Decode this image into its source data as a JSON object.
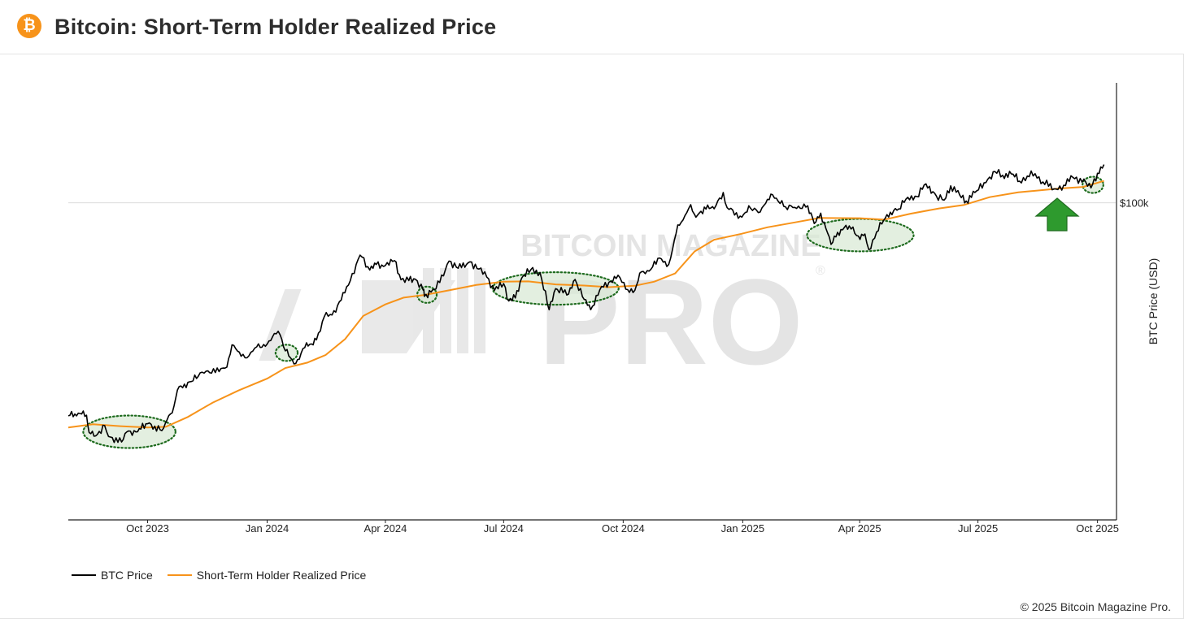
{
  "header": {
    "logo_glyph": "₿",
    "logo_icon": "bitcoin-icon",
    "title": "Bitcoin: Short-Term Holder Realized Price"
  },
  "watermark": {
    "line1": "BITCOIN MAGAZINE",
    "line2": "PRO",
    "mark": "®"
  },
  "colors": {
    "btc_price": "#000000",
    "sth_realized": "#f7931a",
    "highlight_fill": "#d9ead6",
    "highlight_stroke": "#1e6b1e",
    "arrow": "#2e9a2e"
  },
  "footer": {
    "credit": "© 2025 Bitcoin Magazine Pro."
  },
  "chart_data": {
    "type": "line",
    "title": "Bitcoin: Short-Term Holder Realized Price",
    "xlabel": "",
    "ylabel": "BTC Price (USD)",
    "y_scale": "log",
    "ylim": [
      16000,
      200000
    ],
    "xlim": [
      "2023-08-01",
      "2025-10-15"
    ],
    "x_ticks": [
      {
        "date": "2023-10-01",
        "label": "Oct 2023"
      },
      {
        "date": "2024-01-01",
        "label": "Jan 2024"
      },
      {
        "date": "2024-04-01",
        "label": "Apr 2024"
      },
      {
        "date": "2024-07-01",
        "label": "Jul 2024"
      },
      {
        "date": "2024-10-01",
        "label": "Oct 2024"
      },
      {
        "date": "2025-01-01",
        "label": "Jan 2025"
      },
      {
        "date": "2025-04-01",
        "label": "Apr 2025"
      },
      {
        "date": "2025-07-01",
        "label": "Jul 2025"
      },
      {
        "date": "2025-10-01",
        "label": "Oct 2025"
      }
    ],
    "y_ticks": [
      {
        "value": 100000,
        "label": "$100k"
      }
    ],
    "grid": "horizontal at $100k",
    "legend_position": "bottom-left",
    "series": [
      {
        "name": "BTC Price",
        "color": "#000000",
        "points": [
          [
            "2023-08-01",
            29200
          ],
          [
            "2023-08-06",
            29500
          ],
          [
            "2023-08-10",
            29600
          ],
          [
            "2023-08-15",
            29300
          ],
          [
            "2023-08-17",
            26500
          ],
          [
            "2023-08-22",
            26000
          ],
          [
            "2023-08-29",
            27600
          ],
          [
            "2023-09-01",
            25900
          ],
          [
            "2023-09-11",
            25100
          ],
          [
            "2023-09-15",
            26600
          ],
          [
            "2023-09-22",
            26600
          ],
          [
            "2023-10-01",
            27900
          ],
          [
            "2023-10-12",
            26800
          ],
          [
            "2023-10-16",
            28500
          ],
          [
            "2023-10-20",
            29700
          ],
          [
            "2023-10-24",
            33900
          ],
          [
            "2023-11-01",
            35400
          ],
          [
            "2023-11-09",
            36700
          ],
          [
            "2023-11-15",
            37800
          ],
          [
            "2023-11-25",
            37700
          ],
          [
            "2023-12-01",
            38700
          ],
          [
            "2023-12-05",
            44000
          ],
          [
            "2023-12-12",
            41200
          ],
          [
            "2023-12-18",
            41300
          ],
          [
            "2023-12-24",
            43500
          ],
          [
            "2024-01-01",
            44200
          ],
          [
            "2024-01-08",
            46900
          ],
          [
            "2024-01-11",
            46600
          ],
          [
            "2024-01-15",
            42500
          ],
          [
            "2024-01-23",
            39500
          ],
          [
            "2024-01-30",
            43300
          ],
          [
            "2024-02-08",
            45300
          ],
          [
            "2024-02-14",
            51800
          ],
          [
            "2024-02-20",
            52300
          ],
          [
            "2024-02-27",
            57000
          ],
          [
            "2024-03-05",
            63800
          ],
          [
            "2024-03-11",
            72100
          ],
          [
            "2024-03-14",
            73100
          ],
          [
            "2024-03-20",
            67800
          ],
          [
            "2024-03-25",
            70000
          ],
          [
            "2024-04-01",
            69600
          ],
          [
            "2024-04-08",
            71600
          ],
          [
            "2024-04-13",
            64100
          ],
          [
            "2024-04-19",
            63800
          ],
          [
            "2024-04-24",
            64300
          ],
          [
            "2024-04-30",
            60400
          ],
          [
            "2024-05-01",
            58200
          ],
          [
            "2024-05-10",
            60800
          ],
          [
            "2024-05-20",
            71400
          ],
          [
            "2024-05-27",
            68500
          ],
          [
            "2024-06-05",
            71100
          ],
          [
            "2024-06-12",
            68200
          ],
          [
            "2024-06-18",
            65100
          ],
          [
            "2024-06-24",
            60300
          ],
          [
            "2024-07-01",
            62700
          ],
          [
            "2024-07-05",
            56700
          ],
          [
            "2024-07-10",
            57700
          ],
          [
            "2024-07-15",
            64800
          ],
          [
            "2024-07-22",
            68000
          ],
          [
            "2024-07-29",
            66800
          ],
          [
            "2024-08-05",
            53900
          ],
          [
            "2024-08-10",
            60900
          ],
          [
            "2024-08-20",
            59000
          ],
          [
            "2024-08-25",
            64200
          ],
          [
            "2024-09-01",
            57200
          ],
          [
            "2024-09-06",
            53900
          ],
          [
            "2024-09-13",
            60500
          ],
          [
            "2024-09-20",
            63200
          ],
          [
            "2024-09-27",
            65800
          ],
          [
            "2024-10-03",
            60700
          ],
          [
            "2024-10-10",
            60300
          ],
          [
            "2024-10-15",
            67100
          ],
          [
            "2024-10-21",
            67400
          ],
          [
            "2024-10-29",
            72700
          ],
          [
            "2024-11-05",
            70000
          ],
          [
            "2024-11-08",
            76500
          ],
          [
            "2024-11-12",
            88000
          ],
          [
            "2024-11-16",
            90500
          ],
          [
            "2024-11-22",
            98900
          ],
          [
            "2024-11-26",
            92000
          ],
          [
            "2024-12-05",
            98700
          ],
          [
            "2024-12-10",
            96600
          ],
          [
            "2024-12-17",
            106100
          ],
          [
            "2024-12-20",
            97200
          ],
          [
            "2024-12-30",
            92600
          ],
          [
            "2025-01-07",
            96900
          ],
          [
            "2025-01-13",
            94500
          ],
          [
            "2025-01-20",
            102000
          ],
          [
            "2025-01-24",
            104800
          ],
          [
            "2025-02-03",
            97600
          ],
          [
            "2025-02-10",
            97400
          ],
          [
            "2025-02-20",
            98300
          ],
          [
            "2025-02-25",
            88700
          ],
          [
            "2025-03-02",
            94200
          ],
          [
            "2025-03-10",
            78600
          ],
          [
            "2025-03-15",
            84300
          ],
          [
            "2025-03-24",
            87500
          ],
          [
            "2025-03-31",
            82500
          ],
          [
            "2025-04-05",
            83500
          ],
          [
            "2025-04-08",
            76300
          ],
          [
            "2025-04-14",
            84500
          ],
          [
            "2025-04-22",
            93400
          ],
          [
            "2025-05-01",
            96500
          ],
          [
            "2025-05-08",
            103200
          ],
          [
            "2025-05-15",
            103700
          ],
          [
            "2025-05-22",
            111600
          ],
          [
            "2025-05-30",
            104000
          ],
          [
            "2025-06-05",
            101600
          ],
          [
            "2025-06-10",
            110300
          ],
          [
            "2025-06-17",
            104600
          ],
          [
            "2025-06-22",
            101000
          ],
          [
            "2025-06-30",
            107100
          ],
          [
            "2025-07-10",
            116000
          ],
          [
            "2025-07-14",
            119800
          ],
          [
            "2025-07-20",
            117300
          ],
          [
            "2025-07-28",
            118000
          ],
          [
            "2025-08-02",
            113300
          ],
          [
            "2025-08-08",
            116700
          ],
          [
            "2025-08-14",
            118300
          ],
          [
            "2025-08-20",
            112800
          ],
          [
            "2025-08-30",
            108300
          ],
          [
            "2025-09-05",
            110700
          ],
          [
            "2025-09-12",
            115900
          ],
          [
            "2025-09-22",
            112700
          ],
          [
            "2025-09-26",
            109000
          ],
          [
            "2025-10-01",
            118600
          ],
          [
            "2025-10-06",
            124700
          ]
        ]
      },
      {
        "name": "Short-Term Holder Realized Price",
        "color": "#f7931a",
        "points": [
          [
            "2023-08-01",
            27300
          ],
          [
            "2023-08-20",
            27800
          ],
          [
            "2023-09-10",
            27500
          ],
          [
            "2023-10-01",
            27300
          ],
          [
            "2023-10-15",
            27400
          ],
          [
            "2023-11-01",
            29000
          ],
          [
            "2023-11-20",
            31500
          ],
          [
            "2023-12-10",
            33800
          ],
          [
            "2024-01-01",
            36200
          ],
          [
            "2024-01-15",
            38500
          ],
          [
            "2024-02-01",
            39700
          ],
          [
            "2024-02-15",
            41500
          ],
          [
            "2024-03-01",
            45500
          ],
          [
            "2024-03-15",
            52000
          ],
          [
            "2024-04-01",
            55600
          ],
          [
            "2024-04-15",
            57800
          ],
          [
            "2024-05-01",
            58700
          ],
          [
            "2024-05-20",
            60300
          ],
          [
            "2024-06-10",
            62200
          ],
          [
            "2024-07-01",
            63400
          ],
          [
            "2024-07-20",
            63500
          ],
          [
            "2024-08-10",
            62400
          ],
          [
            "2024-09-01",
            62000
          ],
          [
            "2024-09-20",
            61400
          ],
          [
            "2024-10-10",
            61900
          ],
          [
            "2024-10-25",
            63400
          ],
          [
            "2024-11-10",
            66500
          ],
          [
            "2024-11-25",
            75500
          ],
          [
            "2024-12-10",
            80800
          ],
          [
            "2024-12-31",
            83600
          ],
          [
            "2025-01-20",
            86800
          ],
          [
            "2025-02-10",
            89300
          ],
          [
            "2025-03-01",
            91600
          ],
          [
            "2025-04-01",
            91500
          ],
          [
            "2025-04-20",
            90700
          ],
          [
            "2025-05-10",
            93900
          ],
          [
            "2025-06-01",
            96800
          ],
          [
            "2025-06-20",
            98700
          ],
          [
            "2025-07-10",
            103300
          ],
          [
            "2025-08-01",
            106200
          ],
          [
            "2025-09-01",
            108600
          ],
          [
            "2025-09-20",
            109600
          ],
          [
            "2025-10-06",
            113500
          ]
        ]
      }
    ],
    "highlights": [
      {
        "start": "2023-08-15",
        "end": "2023-10-20"
      },
      {
        "start": "2024-01-10",
        "end": "2024-01-22"
      },
      {
        "start": "2024-04-28",
        "end": "2024-05-08"
      },
      {
        "start": "2024-06-25",
        "end": "2024-09-25"
      },
      {
        "start": "2025-02-22",
        "end": "2025-05-10"
      },
      {
        "start": "2025-09-22",
        "end": "2025-10-03"
      }
    ]
  },
  "legend": {
    "btc_label": "BTC Price",
    "sth_label": "Short-Term Holder Realized Price"
  }
}
